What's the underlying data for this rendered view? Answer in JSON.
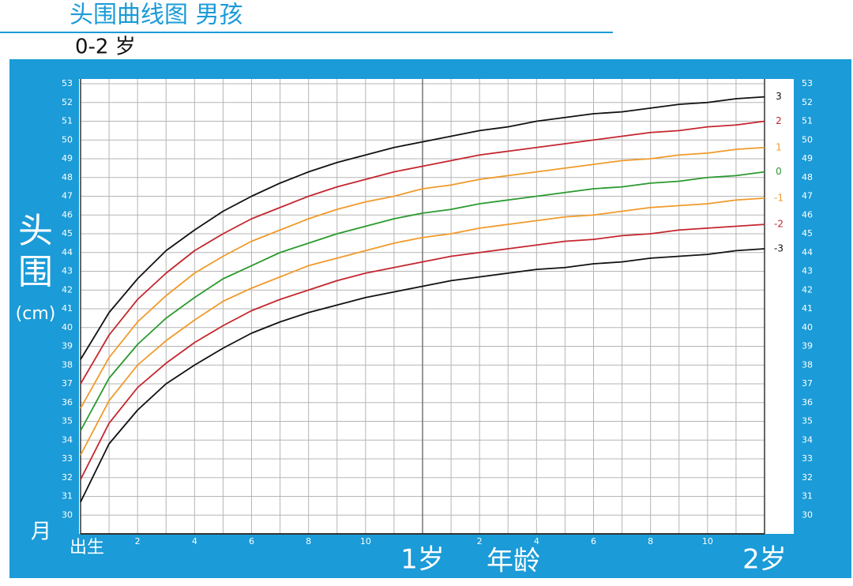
{
  "chart_data": {
    "type": "line",
    "title": "头围曲线图 男孩",
    "subtitle": "0-2 岁",
    "ylabel": "头围",
    "ylabel_unit": "(cm)",
    "xlabel": "年龄",
    "x_unit": "月",
    "x": [
      0,
      1,
      2,
      3,
      4,
      5,
      6,
      7,
      8,
      9,
      10,
      11,
      12,
      13,
      14,
      15,
      16,
      17,
      18,
      19,
      20,
      21,
      22,
      23,
      24
    ],
    "xlim": [
      0,
      24
    ],
    "xticks": [
      {
        "value": 0,
        "label": "出生"
      },
      2,
      4,
      6,
      8,
      10,
      {
        "value": 12,
        "label": "1岁"
      },
      {
        "value": 14,
        "label": "2"
      },
      {
        "value": 16,
        "label": "4"
      },
      {
        "value": 18,
        "label": "6"
      },
      {
        "value": 20,
        "label": "8"
      },
      {
        "value": 22,
        "label": "10"
      },
      {
        "value": 24,
        "label": "2岁"
      }
    ],
    "ylim": [
      29,
      53
    ],
    "yticks": [
      30,
      31,
      32,
      33,
      34,
      35,
      36,
      37,
      38,
      39,
      40,
      41,
      42,
      43,
      44,
      45,
      46,
      47,
      48,
      49,
      50,
      51,
      52,
      53
    ],
    "grid": true,
    "series": [
      {
        "name": "3",
        "color": "#111111",
        "values": [
          38.3,
          40.8,
          42.6,
          44.1,
          45.2,
          46.2,
          47.0,
          47.7,
          48.3,
          48.8,
          49.2,
          49.6,
          49.9,
          50.2,
          50.5,
          50.7,
          51.0,
          51.2,
          51.4,
          51.5,
          51.7,
          51.9,
          52.0,
          52.2,
          52.3
        ]
      },
      {
        "name": "2",
        "color": "#c4262e",
        "values": [
          37.0,
          39.6,
          41.5,
          42.9,
          44.1,
          45.0,
          45.8,
          46.4,
          47.0,
          47.5,
          47.9,
          48.3,
          48.6,
          48.9,
          49.2,
          49.4,
          49.6,
          49.8,
          50.0,
          50.2,
          50.4,
          50.5,
          50.7,
          50.8,
          51.0
        ]
      },
      {
        "name": "1",
        "color": "#f09a2a",
        "values": [
          35.7,
          38.4,
          40.3,
          41.7,
          42.9,
          43.8,
          44.6,
          45.2,
          45.8,
          46.3,
          46.7,
          47.0,
          47.4,
          47.6,
          47.9,
          48.1,
          48.3,
          48.5,
          48.7,
          48.9,
          49.0,
          49.2,
          49.3,
          49.5,
          49.6
        ]
      },
      {
        "name": "0",
        "color": "#2a9a2e",
        "values": [
          34.5,
          37.3,
          39.1,
          40.5,
          41.6,
          42.6,
          43.3,
          44.0,
          44.5,
          45.0,
          45.4,
          45.8,
          46.1,
          46.3,
          46.6,
          46.8,
          47.0,
          47.2,
          47.4,
          47.5,
          47.7,
          47.8,
          48.0,
          48.1,
          48.3
        ]
      },
      {
        "name": "-1",
        "color": "#f09a2a",
        "values": [
          33.2,
          36.1,
          38.0,
          39.3,
          40.4,
          41.4,
          42.1,
          42.7,
          43.3,
          43.7,
          44.1,
          44.5,
          44.8,
          45.0,
          45.3,
          45.5,
          45.7,
          45.9,
          46.0,
          46.2,
          46.4,
          46.5,
          46.6,
          46.8,
          46.9
        ]
      },
      {
        "name": "-2",
        "color": "#c4262e",
        "values": [
          31.9,
          34.9,
          36.8,
          38.1,
          39.2,
          40.1,
          40.9,
          41.5,
          42.0,
          42.5,
          42.9,
          43.2,
          43.5,
          43.8,
          44.0,
          44.2,
          44.4,
          44.6,
          44.7,
          44.9,
          45.0,
          45.2,
          45.3,
          45.4,
          45.5
        ]
      },
      {
        "name": "-3",
        "color": "#111111",
        "values": [
          30.7,
          33.8,
          35.6,
          37.0,
          38.0,
          38.9,
          39.7,
          40.3,
          40.8,
          41.2,
          41.6,
          41.9,
          42.2,
          42.5,
          42.7,
          42.9,
          43.1,
          43.2,
          43.4,
          43.5,
          43.7,
          43.8,
          43.9,
          44.1,
          44.2
        ]
      }
    ]
  }
}
